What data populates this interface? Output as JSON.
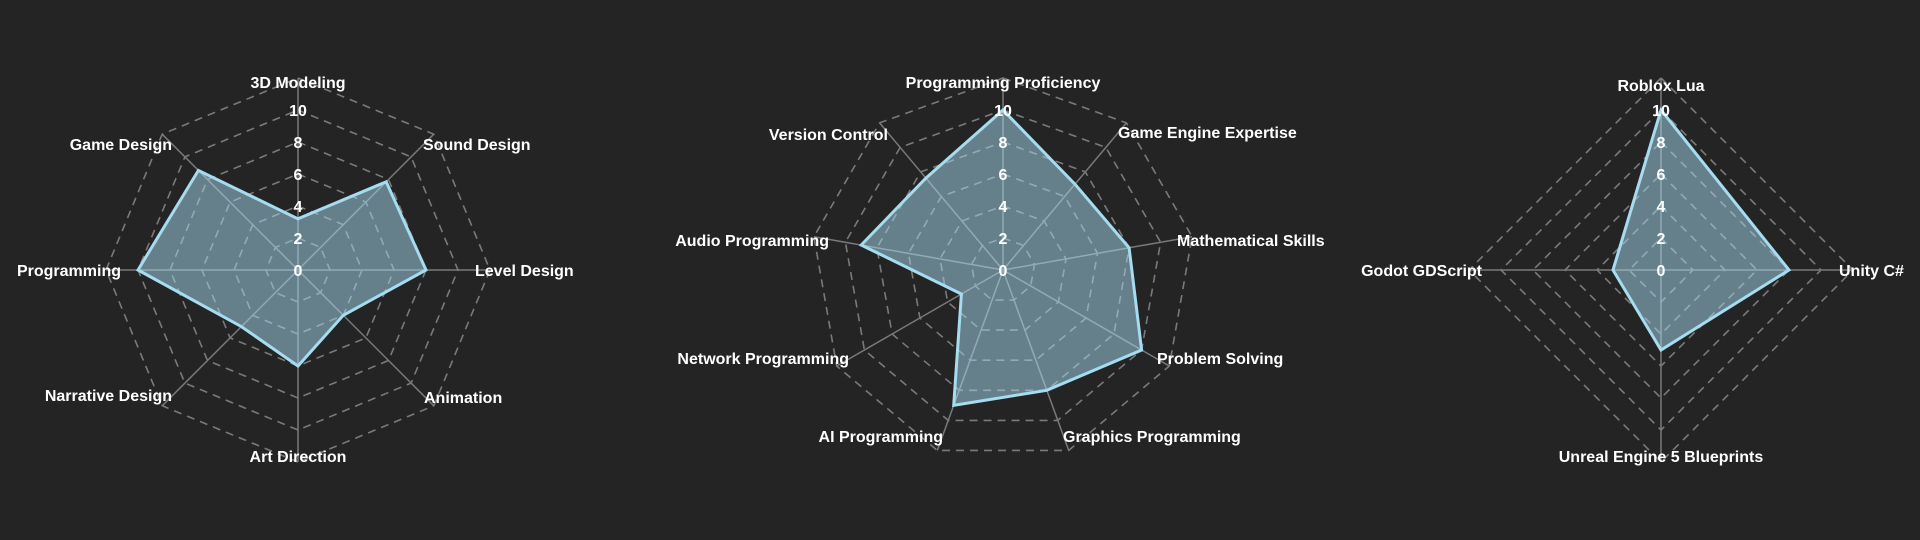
{
  "chart_data": [
    {
      "type": "radar",
      "axes": [
        "3D Modeling",
        "Sound Design",
        "Level Design",
        "Animation",
        "Art Direction",
        "Narrative Design",
        "Programming",
        "Game Design"
      ],
      "values": [
        3.2,
        7.8,
        8.0,
        4.0,
        6.0,
        5.0,
        10.0,
        8.8
      ],
      "rlim": [
        0,
        10
      ],
      "ticks": [
        0,
        2,
        4,
        6,
        8,
        10
      ],
      "grid": true
    },
    {
      "type": "radar",
      "axes": [
        "Programming Proficiency",
        "Game Engine Expertise",
        "Mathematical Skills",
        "Problem Solving",
        "Graphics Programming",
        "AI Programming",
        "Network Programming",
        "Audio Programming",
        "Version Control"
      ],
      "values": [
        10.0,
        7.0,
        8.0,
        10.0,
        8.0,
        9.0,
        3.0,
        9.0,
        7.5
      ],
      "rlim": [
        0,
        10
      ],
      "ticks": [
        0,
        2,
        4,
        6,
        8,
        10
      ],
      "grid": true
    },
    {
      "type": "radar",
      "axes": [
        "Roblox Lua",
        "Unity C#",
        "Unreal Engine 5 Blueprints",
        "Godot GDScript"
      ],
      "values": [
        10.0,
        8.0,
        5.0,
        3.0
      ],
      "rlim": [
        0,
        10
      ],
      "ticks": [
        0,
        2,
        4,
        6,
        8,
        10
      ],
      "grid": true
    }
  ],
  "colors": {
    "background": "#242424",
    "series_line": "#a6dcf0",
    "series_fill": "#a6dcf0",
    "grid": "#7a7a7a",
    "text": "#ffffff"
  }
}
